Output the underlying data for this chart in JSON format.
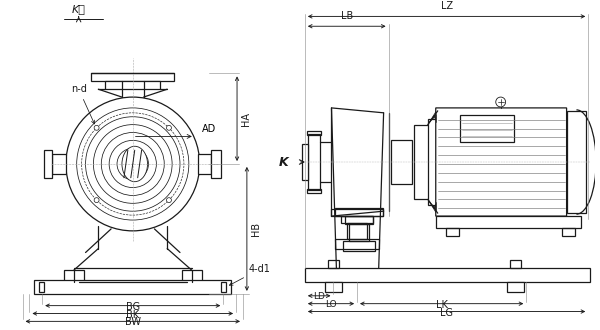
{
  "bg_color": "#ffffff",
  "lc": "#1a1a1a",
  "lw": 0.9,
  "labels_left": {
    "K_dir": "K向",
    "n_d": "n-d",
    "AD": "AD",
    "HA": "HA",
    "HB": "HB",
    "BG": "BG",
    "BK": "BK",
    "BW": "BW",
    "four_d1": "4-d1"
  },
  "labels_right": {
    "LZ": "LZ",
    "LB": "LB",
    "K": "K",
    "LD": "LD",
    "LO": "LO",
    "LK": "LK",
    "LG": "LG"
  }
}
